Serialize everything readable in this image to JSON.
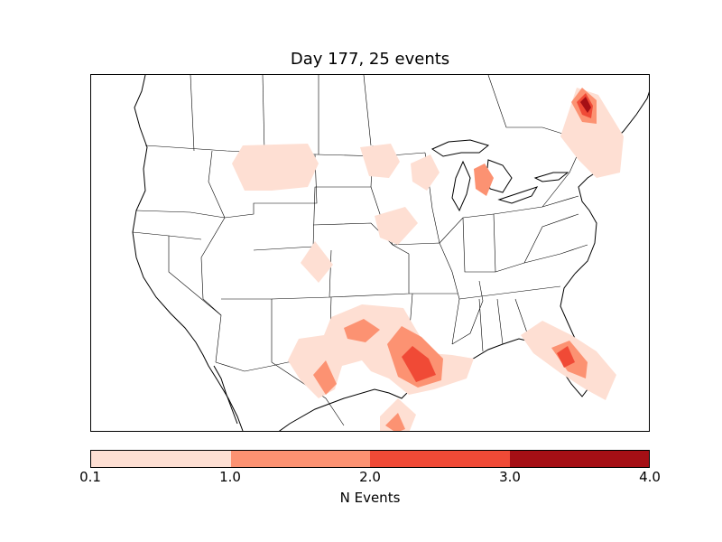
{
  "chart_data": {
    "type": "contour-map",
    "title": "Day 177, 25 events",
    "colorbar": {
      "label": "N Events",
      "ticks": [
        "0.1",
        "1.0",
        "2.0",
        "3.0",
        "4.0"
      ],
      "levels": [
        0.1,
        1.0,
        2.0,
        3.0,
        4.0
      ],
      "colors": [
        "#fedfd3",
        "#fc9272",
        "#f04a36",
        "#a50f15"
      ]
    },
    "regions": [
      {
        "area": "Montana / North Dakota",
        "max_level": "0.1-1.0"
      },
      {
        "area": "Minnesota",
        "max_level": "0.1-1.0"
      },
      {
        "area": "Wisconsin / Michigan",
        "max_level": "1.0-2.0"
      },
      {
        "area": "Iowa",
        "max_level": "0.1-1.0"
      },
      {
        "area": "Colorado",
        "max_level": "0.1-1.0"
      },
      {
        "area": "Texas / Oklahoma",
        "max_level": "2.0-3.0"
      },
      {
        "area": "Louisiana",
        "max_level": "0.1-1.0"
      },
      {
        "area": "Florida",
        "max_level": "2.0-3.0"
      },
      {
        "area": "Maine / Quebec",
        "max_level": "3.0-4.0"
      },
      {
        "area": "Gulf coast Mexico",
        "max_level": "1.0-2.0"
      }
    ]
  }
}
